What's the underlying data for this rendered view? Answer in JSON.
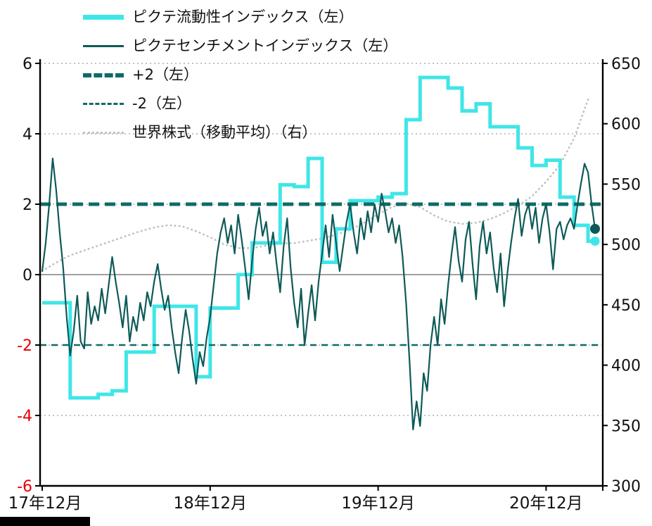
{
  "colors": {
    "cyan": "#3fe6e8",
    "teal_dark": "#0d5a58",
    "teal_ref": "#0e6b66",
    "gray_dotted": "#c0c0c0",
    "grid": "#b0b0b0",
    "zero_line": "#808080",
    "axis": "#000000",
    "negative_tick": "#e60000",
    "text": "#111111"
  },
  "legend": {
    "items": [
      {
        "label": "ピクテ流動性インデックス（左）",
        "swatch": "cyan-solid-thick"
      },
      {
        "label": "ピクテセンチメントインデックス（左）",
        "swatch": "teal-solid-thin"
      },
      {
        "label": "+2（左）",
        "swatch": "teal-dashed-thick"
      },
      {
        "label": "-2（左）",
        "swatch": "teal-dashed-thin"
      },
      {
        "label": "世界株式（移動平均）（右）",
        "swatch": "gray-dotted"
      }
    ]
  },
  "chart_data": {
    "type": "line",
    "title": "",
    "x_unit": "months since Dec 2017",
    "x_axis": {
      "labels": [
        {
          "text": "17年12月",
          "month": 0
        },
        {
          "text": "18年12月",
          "month": 12
        },
        {
          "text": "19年12月",
          "month": 24
        },
        {
          "text": "20年12月",
          "month": 36
        }
      ]
    },
    "left_axis": {
      "range": [
        -6,
        6
      ],
      "ticks": [
        6,
        4,
        2,
        0,
        -2,
        -4,
        -6
      ],
      "gridlines_dotted": [
        6,
        4,
        2,
        -2,
        -4
      ],
      "zero_line": 0
    },
    "right_axis": {
      "range": [
        300,
        650
      ],
      "ticks": [
        650,
        600,
        550,
        500,
        450,
        400,
        350,
        300
      ]
    },
    "reference_lines": [
      {
        "label": "+2（左）",
        "value": 2,
        "style": "dashed-thick",
        "color": "#0e6b66"
      },
      {
        "label": "-2（左）",
        "value": -2,
        "style": "dashed-thin",
        "color": "#0e6b66"
      }
    ],
    "series": [
      {
        "name": "世界株式（移動平均）（右）",
        "axis": "right",
        "style": "dotted",
        "color": "#c0c0c0",
        "x_start": 0,
        "x_step": 1,
        "values": [
          478,
          485,
          491,
          495,
          499,
          503,
          507,
          511,
          514,
          516,
          515,
          511,
          506,
          500,
          497,
          497,
          499,
          501,
          501,
          503,
          505,
          508,
          512,
          518,
          525,
          531,
          534,
          531,
          524,
          519,
          517,
          518,
          521,
          526,
          532,
          540,
          552,
          566,
          588,
          620
        ]
      },
      {
        "name": "ピクテ流動性インデックス（左）",
        "axis": "left",
        "style": "step",
        "color": "#3fe6e8",
        "x_start": 0,
        "x_step": 1,
        "x_end": 39.5,
        "values": [
          -0.8,
          -0.8,
          -3.5,
          -3.5,
          -3.4,
          -3.3,
          -2.2,
          -2.2,
          -0.9,
          -0.9,
          -0.9,
          -2.9,
          -0.95,
          -0.95,
          0.0,
          0.9,
          0.9,
          2.55,
          2.5,
          3.3,
          0.35,
          1.3,
          2.1,
          2.1,
          2.2,
          2.3,
          4.4,
          5.6,
          5.6,
          5.3,
          4.65,
          4.85,
          4.2,
          4.2,
          3.6,
          3.1,
          3.25,
          2.2,
          1.4,
          0.95
        ]
      },
      {
        "name": "ピクテセンチメントインデックス（左）",
        "axis": "left",
        "style": "line",
        "color": "#0d5a58",
        "x_start": 0,
        "x_step": 0.25,
        "values": [
          0.1,
          0.9,
          2.0,
          3.3,
          2.4,
          1.2,
          0.2,
          -1.2,
          -2.3,
          -1.6,
          -0.6,
          -1.9,
          -2.1,
          -0.5,
          -1.4,
          -0.9,
          -1.3,
          -0.4,
          -1.1,
          -0.3,
          0.5,
          -0.2,
          -0.8,
          -1.5,
          -0.6,
          -1.9,
          -1.2,
          -1.6,
          -0.8,
          -1.3,
          -0.5,
          -0.9,
          -0.2,
          0.3,
          -0.4,
          -1.0,
          -0.6,
          -1.5,
          -2.2,
          -2.8,
          -1.8,
          -1.0,
          -1.6,
          -2.4,
          -3.1,
          -2.2,
          -2.6,
          -1.8,
          -1.2,
          -0.3,
          0.6,
          1.2,
          1.6,
          0.9,
          1.4,
          0.6,
          1.7,
          1.0,
          0.2,
          -0.7,
          0.4,
          1.3,
          1.9,
          1.1,
          1.5,
          0.6,
          1.2,
          0.3,
          -0.5,
          0.8,
          1.6,
          0.2,
          -0.8,
          -1.5,
          -0.4,
          -2.0,
          -1.1,
          -0.3,
          -1.3,
          -0.2,
          0.6,
          1.4,
          0.5,
          1.7,
          0.9,
          0.1,
          0.8,
          1.5,
          2.0,
          1.2,
          0.6,
          1.6,
          1.0,
          1.8,
          1.2,
          2.0,
          1.5,
          2.3,
          1.8,
          1.2,
          1.6,
          0.9,
          1.4,
          0.5,
          -0.8,
          -2.5,
          -4.4,
          -3.6,
          -4.3,
          -2.8,
          -3.3,
          -2.0,
          -1.2,
          -2.0,
          -0.7,
          -1.4,
          -0.3,
          0.6,
          1.35,
          0.4,
          -0.2,
          1.0,
          1.5,
          0.3,
          -0.7,
          0.8,
          1.5,
          0.6,
          1.2,
          0.2,
          -0.5,
          0.6,
          -0.9,
          0.1,
          0.9,
          1.6,
          2.15,
          1.1,
          1.7,
          2.0,
          1.3,
          1.9,
          0.9,
          1.6,
          2.0,
          1.2,
          0.15,
          1.3,
          1.5,
          1.0,
          1.4,
          1.6,
          1.3,
          2.0,
          2.6,
          3.15,
          2.9,
          2.0,
          1.3
        ]
      }
    ],
    "end_markers": [
      {
        "series": "ピクテセンチメントインデックス（左）",
        "month": 39.5,
        "value": 1.3,
        "color": "#0d5a58",
        "radius": 7
      },
      {
        "series": "ピクテ流動性インデックス（左）",
        "month": 39.5,
        "value": 0.95,
        "color": "#3fe6e8",
        "radius": 6.5
      }
    ]
  }
}
